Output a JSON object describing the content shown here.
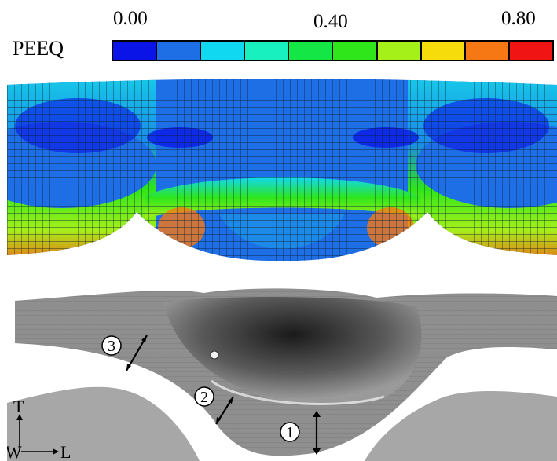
{
  "legend": {
    "title": "PEEQ",
    "ticks": [
      "0.00",
      "0.40",
      "0.80"
    ],
    "colors": [
      "#0a14e6",
      "#1e6ee6",
      "#10d8f0",
      "#18f0c0",
      "#14e646",
      "#2ee61a",
      "#a6f01a",
      "#f5dc0a",
      "#f57814",
      "#f01414"
    ]
  },
  "fem": {
    "mesh_color": "#0b1e2e"
  },
  "micro": {
    "zones": [
      "1",
      "2",
      "3"
    ],
    "axes": {
      "t": "T",
      "w": "W",
      "l": "L"
    }
  }
}
